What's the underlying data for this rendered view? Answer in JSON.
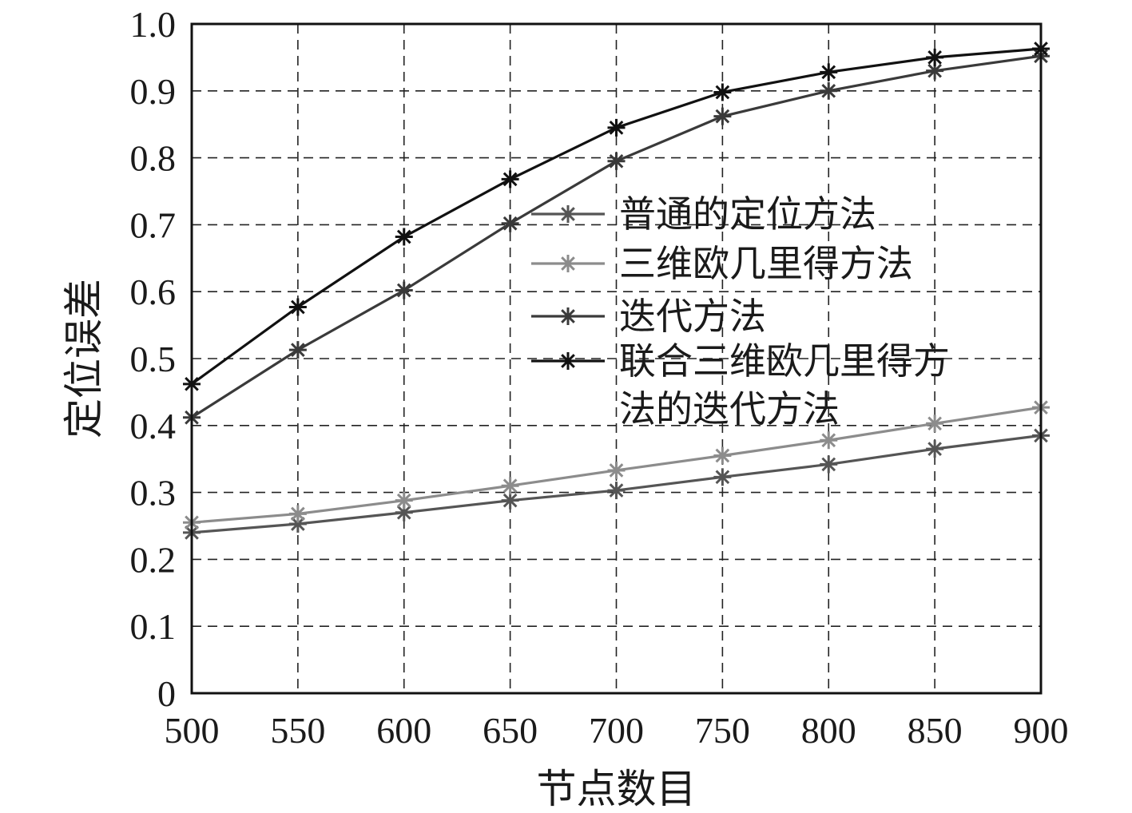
{
  "chart_data": {
    "type": "line",
    "xlabel": "节点数目",
    "ylabel": "定位误差",
    "xlim": [
      500,
      900
    ],
    "ylim": [
      0,
      1.0
    ],
    "x": [
      500,
      550,
      600,
      650,
      700,
      750,
      800,
      850,
      900
    ],
    "xticks": [
      "500",
      "550",
      "600",
      "650",
      "700",
      "750",
      "800",
      "850",
      "900"
    ],
    "yticks": [
      "0",
      "0.1",
      "0.2",
      "0.3",
      "0.4",
      "0.5",
      "0.6",
      "0.7",
      "0.8",
      "0.9",
      "1.0"
    ],
    "grid": true,
    "legend_position": "center-right",
    "marker": "asterisk",
    "series": [
      {
        "name": "普通的定位方法",
        "color": "#555555",
        "values": [
          0.24,
          0.253,
          0.27,
          0.288,
          0.303,
          0.323,
          0.342,
          0.365,
          0.385
        ]
      },
      {
        "name": "三维欧几里得方法",
        "color": "#8c8c8c",
        "values": [
          0.255,
          0.268,
          0.288,
          0.31,
          0.333,
          0.355,
          0.378,
          0.403,
          0.427
        ]
      },
      {
        "name": "迭代方法",
        "color": "#3a3a3a",
        "values": [
          0.412,
          0.513,
          0.602,
          0.702,
          0.795,
          0.862,
          0.9,
          0.93,
          0.952
        ]
      },
      {
        "name_lines": [
          "联合三维欧几里得方",
          "法的迭代方法"
        ],
        "color": "#111111",
        "values": [
          0.462,
          0.577,
          0.682,
          0.768,
          0.845,
          0.898,
          0.928,
          0.95,
          0.963
        ]
      }
    ]
  }
}
